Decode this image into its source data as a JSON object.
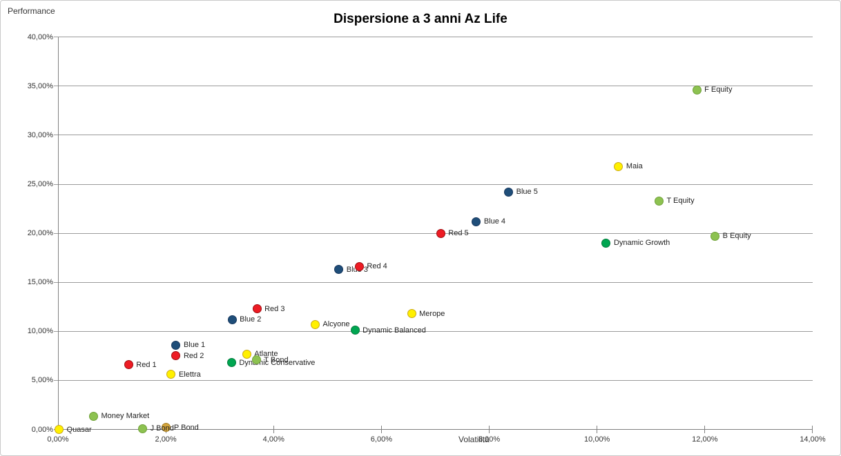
{
  "chart_data": {
    "type": "scatter",
    "title": "Dispersione a 3 anni Az Life",
    "xlabel": "Volatilità",
    "ylabel": "Performance",
    "xlim": [
      0,
      14
    ],
    "ylim": [
      0,
      40
    ],
    "grid": "horizontal",
    "legend": "none",
    "x_ticks": [
      {
        "value": 0,
        "label": "0,00%"
      },
      {
        "value": 2,
        "label": "2,00%"
      },
      {
        "value": 4,
        "label": "4,00%"
      },
      {
        "value": 6,
        "label": "6,00%"
      },
      {
        "value": 8,
        "label": "8,00%"
      },
      {
        "value": 10,
        "label": "10,00%"
      },
      {
        "value": 12,
        "label": "12,00%"
      },
      {
        "value": 14,
        "label": "14,00%"
      }
    ],
    "y_ticks": [
      {
        "value": 0,
        "label": "0,00%"
      },
      {
        "value": 5,
        "label": "5,00%"
      },
      {
        "value": 10,
        "label": "10,00%"
      },
      {
        "value": 15,
        "label": "15,00%"
      },
      {
        "value": 20,
        "label": "20,00%"
      },
      {
        "value": 25,
        "label": "25,00%"
      },
      {
        "value": 30,
        "label": "30,00%"
      },
      {
        "value": 35,
        "label": "35,00%"
      },
      {
        "value": 40,
        "label": "40,00%"
      }
    ],
    "series_colors": {
      "blue": {
        "fill": "#1F4E79",
        "stroke": "#16365D"
      },
      "red": {
        "fill": "#ED1C24",
        "stroke": "#9E0B0F"
      },
      "yellow": {
        "fill": "#FFF000",
        "stroke": "#C9A817"
      },
      "lightgreen": {
        "fill": "#8DC251",
        "stroke": "#70A139"
      },
      "green": {
        "fill": "#00A651",
        "stroke": "#00793B"
      },
      "gold": {
        "fill": "#D2A43C",
        "stroke": "#A87E23"
      }
    },
    "points": [
      {
        "name": "Quasar",
        "x": 0.02,
        "y": 0.0,
        "series": "yellow"
      },
      {
        "name": "Money Market",
        "x": 0.66,
        "y": 1.35,
        "series": "lightgreen"
      },
      {
        "name": "P Bond",
        "x": 2.01,
        "y": 0.2,
        "series": "gold"
      },
      {
        "name": "J Bond",
        "x": 1.57,
        "y": 0.1,
        "series": "lightgreen"
      },
      {
        "name": "Red 1",
        "x": 1.31,
        "y": 6.6,
        "series": "red"
      },
      {
        "name": "Elettra",
        "x": 2.1,
        "y": 5.6,
        "series": "yellow"
      },
      {
        "name": "Blue 1",
        "x": 2.19,
        "y": 8.6,
        "series": "blue"
      },
      {
        "name": "Red 2",
        "x": 2.19,
        "y": 7.5,
        "series": "red"
      },
      {
        "name": "Dynamic Conservative",
        "x": 3.22,
        "y": 6.8,
        "series": "green"
      },
      {
        "name": "Atlante",
        "x": 3.5,
        "y": 7.7,
        "series": "yellow"
      },
      {
        "name": "T Bond",
        "x": 3.68,
        "y": 7.1,
        "series": "lightgreen"
      },
      {
        "name": "Blue 2",
        "x": 3.23,
        "y": 11.2,
        "series": "blue"
      },
      {
        "name": "Red 3",
        "x": 3.69,
        "y": 12.3,
        "series": "red"
      },
      {
        "name": "Alcyone",
        "x": 4.77,
        "y": 10.7,
        "series": "yellow"
      },
      {
        "name": "Dynamic Balanced",
        "x": 5.51,
        "y": 10.1,
        "series": "green"
      },
      {
        "name": "Merope",
        "x": 6.56,
        "y": 11.8,
        "series": "yellow"
      },
      {
        "name": "Blue 3",
        "x": 5.21,
        "y": 16.3,
        "series": "blue"
      },
      {
        "name": "Red 4",
        "x": 5.59,
        "y": 16.6,
        "series": "red"
      },
      {
        "name": "Red 5",
        "x": 7.1,
        "y": 20.0,
        "series": "red"
      },
      {
        "name": "Blue 4",
        "x": 7.76,
        "y": 21.2,
        "series": "blue"
      },
      {
        "name": "Blue 5",
        "x": 8.36,
        "y": 24.2,
        "series": "blue"
      },
      {
        "name": "Dynamic Growth",
        "x": 10.17,
        "y": 19.0,
        "series": "green"
      },
      {
        "name": "Maia",
        "x": 10.4,
        "y": 26.8,
        "series": "yellow"
      },
      {
        "name": "T Equity",
        "x": 11.15,
        "y": 23.3,
        "series": "lightgreen"
      },
      {
        "name": "B Equity",
        "x": 12.19,
        "y": 19.7,
        "series": "lightgreen"
      },
      {
        "name": "F Equity",
        "x": 11.85,
        "y": 34.6,
        "series": "lightgreen"
      }
    ]
  }
}
